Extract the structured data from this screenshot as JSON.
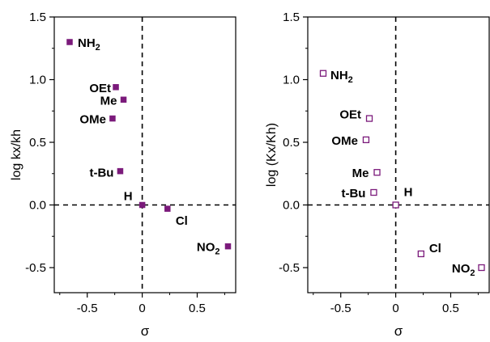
{
  "marker_color": "#7b1a7b",
  "chart_data": [
    {
      "type": "scatter",
      "xlabel": "σ",
      "ylabel": "log kx/kh",
      "xlim": [
        -0.8,
        0.85
      ],
      "ylim": [
        -0.7,
        1.5
      ],
      "xticks": [
        -0.5,
        0.0,
        0.5
      ],
      "xtick_labels": [
        "-0.5",
        "0",
        "0.5"
      ],
      "yticks": [
        -0.5,
        0.0,
        0.5,
        1.0,
        1.5
      ],
      "ytick_labels": [
        "-0.5",
        "0.0",
        "0.5",
        "1.0",
        "1.5"
      ],
      "marker": "filled-square",
      "reference_lines": {
        "x": 0,
        "y": 0,
        "style": "dashed"
      },
      "points": [
        {
          "label": "NH2",
          "label_main": "NH",
          "label_sub": "2",
          "x": -0.66,
          "y": 1.3
        },
        {
          "label": "OEt",
          "label_main": "OEt",
          "label_sub": "",
          "x": -0.24,
          "y": 0.94
        },
        {
          "label": "Me",
          "label_main": "Me",
          "label_sub": "",
          "x": -0.17,
          "y": 0.84
        },
        {
          "label": "OMe",
          "label_main": "OMe",
          "label_sub": "",
          "x": -0.27,
          "y": 0.69
        },
        {
          "label": "t-Bu",
          "label_main": "t-Bu",
          "label_sub": "",
          "x": -0.2,
          "y": 0.27
        },
        {
          "label": "H",
          "label_main": "H",
          "label_sub": "",
          "x": 0.0,
          "y": 0.0
        },
        {
          "label": "Cl",
          "label_main": "Cl",
          "label_sub": "",
          "x": 0.23,
          "y": -0.03
        },
        {
          "label": "NO2",
          "label_main": "NO",
          "label_sub": "2",
          "x": 0.78,
          "y": -0.33
        }
      ]
    },
    {
      "type": "scatter",
      "xlabel": "σ",
      "ylabel": "log (Kx/Kh)",
      "xlim": [
        -0.8,
        0.85
      ],
      "ylim": [
        -0.7,
        1.5
      ],
      "xticks": [
        -0.5,
        0.0,
        0.5
      ],
      "xtick_labels": [
        "-0.5",
        "0",
        "0.5"
      ],
      "yticks": [
        -0.5,
        0.0,
        0.5,
        1.0,
        1.5
      ],
      "ytick_labels": [
        "-0.5",
        "0.0",
        "0.5",
        "1.0",
        "1.5"
      ],
      "marker": "open-square",
      "reference_lines": {
        "x": 0,
        "y": 0,
        "style": "dashed"
      },
      "points": [
        {
          "label": "NH2",
          "label_main": "NH",
          "label_sub": "2",
          "x": -0.66,
          "y": 1.05
        },
        {
          "label": "OEt",
          "label_main": "OEt",
          "label_sub": "",
          "x": -0.24,
          "y": 0.69
        },
        {
          "label": "OMe",
          "label_main": "OMe",
          "label_sub": "",
          "x": -0.27,
          "y": 0.52
        },
        {
          "label": "Me",
          "label_main": "Me",
          "label_sub": "",
          "x": -0.17,
          "y": 0.26
        },
        {
          "label": "t-Bu",
          "label_main": "t-Bu",
          "label_sub": "",
          "x": -0.2,
          "y": 0.1
        },
        {
          "label": "H",
          "label_main": "H",
          "label_sub": "",
          "x": 0.0,
          "y": 0.0
        },
        {
          "label": "Cl",
          "label_main": "Cl",
          "label_sub": "",
          "x": 0.23,
          "y": -0.39
        },
        {
          "label": "NO2",
          "label_main": "NO",
          "label_sub": "2",
          "x": 0.78,
          "y": -0.5
        }
      ]
    }
  ]
}
